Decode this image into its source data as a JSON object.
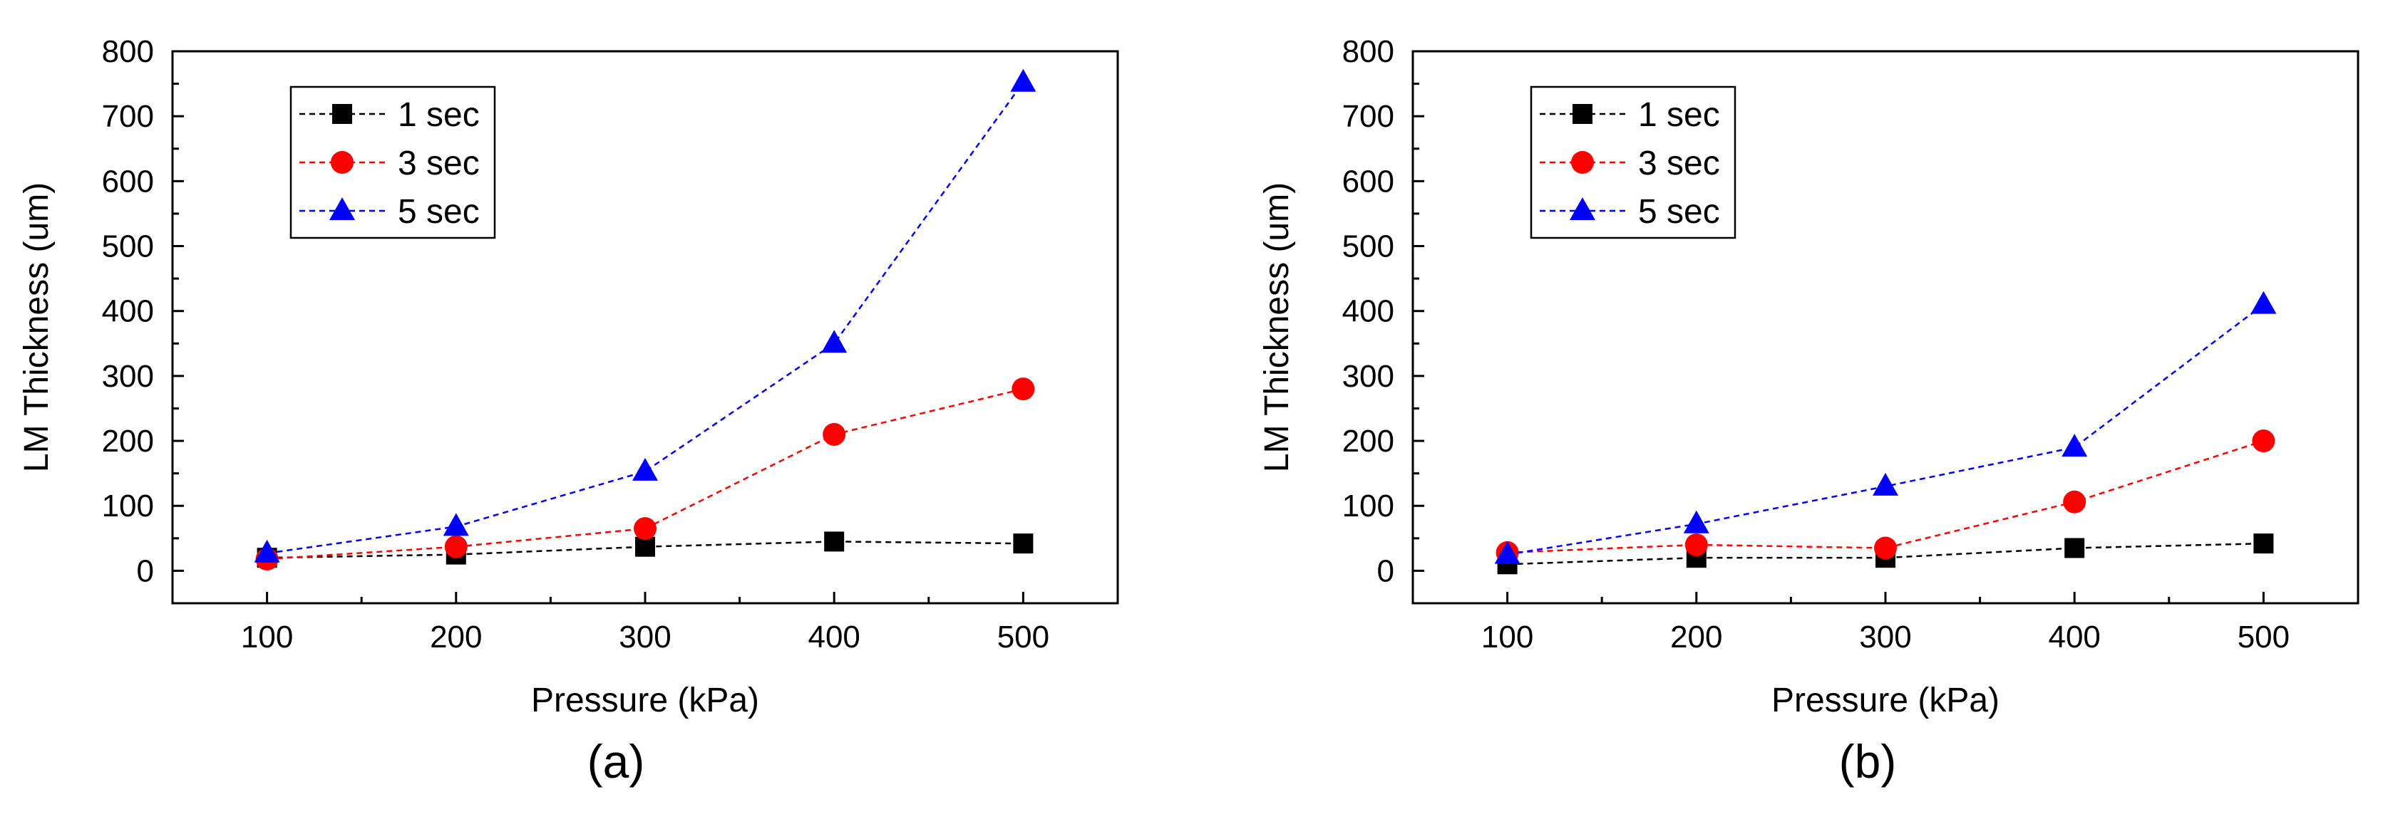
{
  "chart_data": [
    {
      "type": "line",
      "panel_label": "(a)",
      "xlabel": "Pressure (kPa)",
      "ylabel": "LM Thickness (um)",
      "xlim": [
        50,
        550
      ],
      "ylim": [
        -50,
        800
      ],
      "x": [
        100,
        200,
        300,
        400,
        500
      ],
      "xticks": [
        "100",
        "200",
        "300",
        "400",
        "500"
      ],
      "yticks": [
        "0",
        "100",
        "200",
        "300",
        "400",
        "500",
        "600",
        "700",
        "800"
      ],
      "legend_position": "top-left",
      "grid": false,
      "series": [
        {
          "name": "1 sec",
          "marker": "square",
          "color": "#000000",
          "values": [
            20,
            25,
            37,
            45,
            42
          ]
        },
        {
          "name": "3 sec",
          "marker": "circle",
          "color": "#ff0000",
          "values": [
            18,
            37,
            65,
            210,
            280
          ]
        },
        {
          "name": "5 sec",
          "marker": "triangle",
          "color": "#0000ff",
          "values": [
            27,
            68,
            153,
            350,
            752
          ]
        }
      ]
    },
    {
      "type": "line",
      "panel_label": "(b)",
      "xlabel": "Pressure (kPa)",
      "ylabel": "LM Thickness (um)",
      "xlim": [
        50,
        550
      ],
      "ylim": [
        -50,
        800
      ],
      "x": [
        100,
        200,
        300,
        400,
        500
      ],
      "xticks": [
        "100",
        "200",
        "300",
        "400",
        "500"
      ],
      "yticks": [
        "0",
        "100",
        "200",
        "300",
        "400",
        "500",
        "600",
        "700",
        "800"
      ],
      "legend_position": "top-left",
      "grid": false,
      "series": [
        {
          "name": "1 sec",
          "marker": "square",
          "color": "#000000",
          "values": [
            10,
            20,
            20,
            35,
            42
          ]
        },
        {
          "name": "3 sec",
          "marker": "circle",
          "color": "#ff0000",
          "values": [
            28,
            40,
            35,
            106,
            200
          ]
        },
        {
          "name": "5 sec",
          "marker": "triangle",
          "color": "#0000ff",
          "values": [
            25,
            72,
            130,
            190,
            410
          ]
        }
      ]
    }
  ]
}
